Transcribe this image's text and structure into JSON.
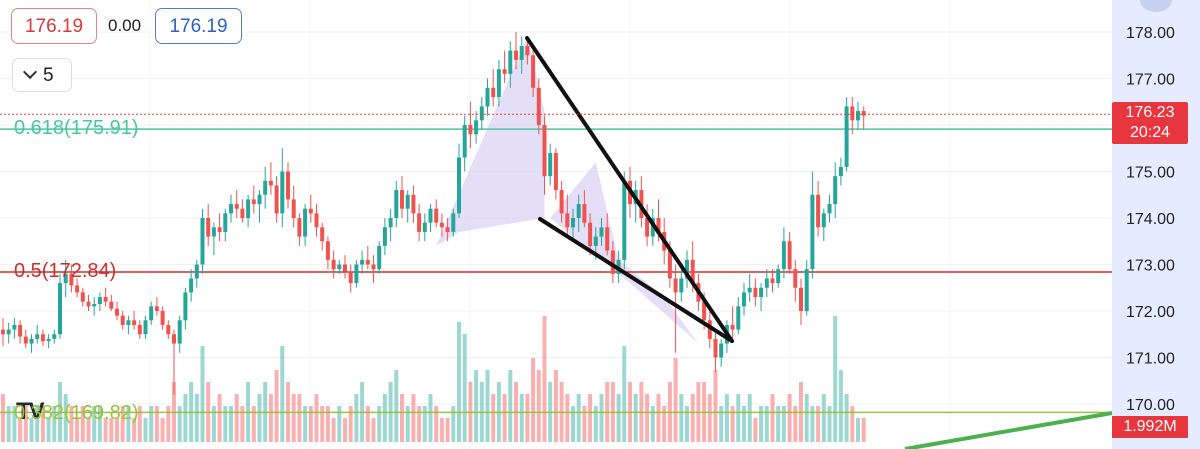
{
  "header": {
    "bid": "176.19",
    "spread": "0.00",
    "ask": "176.19",
    "collapse_count": "5"
  },
  "fib_levels": [
    {
      "label": "0.618(175.91)",
      "price": 175.91,
      "color": "#46c79f"
    },
    {
      "label": "0.5(172.84)",
      "price": 172.84,
      "color": "#c9302c"
    },
    {
      "label": "0.382(169.82)",
      "price": 169.82,
      "color": "#9bc23a"
    }
  ],
  "price_tag": {
    "price": "176.23",
    "countdown": "20:24"
  },
  "volume_tag": "1.992M",
  "logo_text": "TV",
  "colors": {
    "up": "#26a69a",
    "down": "#ef5350",
    "axis_bg": "#e6ecff",
    "pattern_fill": "#d9d2f2"
  },
  "chart_data": {
    "type": "candlestick",
    "yaxis": {
      "ticks": [
        "178.00",
        "177.00",
        "176.00",
        "175.00",
        "174.00",
        "173.00",
        "172.00",
        "171.00",
        "170.00"
      ],
      "range": [
        169.75,
        178.6
      ]
    },
    "last_price": 176.23,
    "candles": [
      [
        171.6,
        171.85,
        171.25,
        171.5
      ],
      [
        171.5,
        171.75,
        171.3,
        171.6
      ],
      [
        171.6,
        171.85,
        171.4,
        171.7
      ],
      [
        171.7,
        171.8,
        171.3,
        171.45
      ],
      [
        171.45,
        171.6,
        171.2,
        171.3
      ],
      [
        171.3,
        171.5,
        171.1,
        171.4
      ],
      [
        171.4,
        171.7,
        171.3,
        171.5
      ],
      [
        171.5,
        171.6,
        171.25,
        171.35
      ],
      [
        171.35,
        171.5,
        171.2,
        171.4
      ],
      [
        171.4,
        171.6,
        171.3,
        171.5
      ],
      [
        171.5,
        172.8,
        171.4,
        172.6
      ],
      [
        172.6,
        173.1,
        172.3,
        172.8
      ],
      [
        172.8,
        173.0,
        172.4,
        172.55
      ],
      [
        172.55,
        172.7,
        172.3,
        172.4
      ],
      [
        172.4,
        172.5,
        172.1,
        172.2
      ],
      [
        172.2,
        172.35,
        172.0,
        172.1
      ],
      [
        172.1,
        172.3,
        171.9,
        172.15
      ],
      [
        172.15,
        172.4,
        172.0,
        172.3
      ],
      [
        172.3,
        172.5,
        172.1,
        172.2
      ],
      [
        172.2,
        172.35,
        172.0,
        172.05
      ],
      [
        172.05,
        172.2,
        171.8,
        171.9
      ],
      [
        171.9,
        172.0,
        171.6,
        171.7
      ],
      [
        171.7,
        171.9,
        171.5,
        171.8
      ],
      [
        171.8,
        172.0,
        171.6,
        171.7
      ],
      [
        171.7,
        171.8,
        171.4,
        171.5
      ],
      [
        171.5,
        171.9,
        171.4,
        171.8
      ],
      [
        171.8,
        172.2,
        171.7,
        172.1
      ],
      [
        172.1,
        172.3,
        171.9,
        172.0
      ],
      [
        172.0,
        172.1,
        171.6,
        171.7
      ],
      [
        171.7,
        171.8,
        171.4,
        171.5
      ],
      [
        171.5,
        171.6,
        170.2,
        171.3
      ],
      [
        171.3,
        171.9,
        171.1,
        171.8
      ],
      [
        171.8,
        172.5,
        171.6,
        172.4
      ],
      [
        172.4,
        172.9,
        172.2,
        172.7
      ],
      [
        172.7,
        173.1,
        172.5,
        173.0
      ],
      [
        173.0,
        174.2,
        172.8,
        174.0
      ],
      [
        174.0,
        174.3,
        173.4,
        173.6
      ],
      [
        173.6,
        173.9,
        173.2,
        173.8
      ],
      [
        173.8,
        174.1,
        173.5,
        173.7
      ],
      [
        173.7,
        174.2,
        173.5,
        174.1
      ],
      [
        174.1,
        174.5,
        173.9,
        174.3
      ],
      [
        174.3,
        174.6,
        174.0,
        174.2
      ],
      [
        174.2,
        174.4,
        173.9,
        174.0
      ],
      [
        174.0,
        174.5,
        173.8,
        174.4
      ],
      [
        174.4,
        174.7,
        174.1,
        174.3
      ],
      [
        174.3,
        174.6,
        173.9,
        174.5
      ],
      [
        174.5,
        175.1,
        174.2,
        174.8
      ],
      [
        174.8,
        175.2,
        174.5,
        174.7
      ],
      [
        174.7,
        174.9,
        173.9,
        174.1
      ],
      [
        174.1,
        175.5,
        173.8,
        175.0
      ],
      [
        175.0,
        175.2,
        174.2,
        174.4
      ],
      [
        174.4,
        174.7,
        173.8,
        174.0
      ],
      [
        174.0,
        174.1,
        173.4,
        173.6
      ],
      [
        173.6,
        174.3,
        173.4,
        174.2
      ],
      [
        174.2,
        174.5,
        173.9,
        174.1
      ],
      [
        174.1,
        174.3,
        173.6,
        173.8
      ],
      [
        173.8,
        173.9,
        173.3,
        173.5
      ],
      [
        173.5,
        173.6,
        172.9,
        173.1
      ],
      [
        173.1,
        173.3,
        172.7,
        172.9
      ],
      [
        172.9,
        173.1,
        172.8,
        173.0
      ],
      [
        173.0,
        173.2,
        172.7,
        172.85
      ],
      [
        172.85,
        173.0,
        172.4,
        172.6
      ],
      [
        172.6,
        173.1,
        172.5,
        173.0
      ],
      [
        173.0,
        173.3,
        172.8,
        173.1
      ],
      [
        173.1,
        173.4,
        172.9,
        173.0
      ],
      [
        173.0,
        173.2,
        172.6,
        172.9
      ],
      [
        172.9,
        173.5,
        172.8,
        173.4
      ],
      [
        173.4,
        174.0,
        173.2,
        173.8
      ],
      [
        173.8,
        174.2,
        173.5,
        174.0
      ],
      [
        174.0,
        174.8,
        173.8,
        174.6
      ],
      [
        174.6,
        174.9,
        174.0,
        174.2
      ],
      [
        174.2,
        174.6,
        173.9,
        174.5
      ],
      [
        174.5,
        174.7,
        173.9,
        174.1
      ],
      [
        174.1,
        174.3,
        173.5,
        173.7
      ],
      [
        173.7,
        174.1,
        173.5,
        173.9
      ],
      [
        173.9,
        174.3,
        173.7,
        174.2
      ],
      [
        174.2,
        174.4,
        173.8,
        173.9
      ],
      [
        173.9,
        174.1,
        173.6,
        173.8
      ],
      [
        173.8,
        174.0,
        173.5,
        173.7
      ],
      [
        173.7,
        174.2,
        173.6,
        174.1
      ],
      [
        174.1,
        175.6,
        174.0,
        175.3
      ],
      [
        175.3,
        176.2,
        175.0,
        176.0
      ],
      [
        176.0,
        176.5,
        175.5,
        175.8
      ],
      [
        175.8,
        176.3,
        175.6,
        176.1
      ],
      [
        176.1,
        176.6,
        175.9,
        176.4
      ],
      [
        176.4,
        177.0,
        176.2,
        176.8
      ],
      [
        176.8,
        177.2,
        176.4,
        176.6
      ],
      [
        176.6,
        177.4,
        176.4,
        177.2
      ],
      [
        177.2,
        177.6,
        176.9,
        177.1
      ],
      [
        177.1,
        177.8,
        176.8,
        177.6
      ],
      [
        177.6,
        178.0,
        177.2,
        177.4
      ],
      [
        177.4,
        177.9,
        177.1,
        177.7
      ],
      [
        177.7,
        177.9,
        177.3,
        177.5
      ],
      [
        177.5,
        177.7,
        176.6,
        176.8
      ],
      [
        176.8,
        177.0,
        175.8,
        176.0
      ],
      [
        176.0,
        176.2,
        174.5,
        174.9
      ],
      [
        174.9,
        175.6,
        174.7,
        175.4
      ],
      [
        175.4,
        175.5,
        174.4,
        174.6
      ],
      [
        174.6,
        174.8,
        173.9,
        174.1
      ],
      [
        174.1,
        174.5,
        173.6,
        173.8
      ],
      [
        173.8,
        174.2,
        173.5,
        174.0
      ],
      [
        174.0,
        174.5,
        173.7,
        174.3
      ],
      [
        174.3,
        174.6,
        173.8,
        173.9
      ],
      [
        173.9,
        174.1,
        173.2,
        173.4
      ],
      [
        173.4,
        173.8,
        173.1,
        173.6
      ],
      [
        173.6,
        174.0,
        173.4,
        173.8
      ],
      [
        173.8,
        174.1,
        173.2,
        173.3
      ],
      [
        173.3,
        173.5,
        172.6,
        172.8
      ],
      [
        172.8,
        173.3,
        172.6,
        173.1
      ],
      [
        173.1,
        175.0,
        172.9,
        174.8
      ],
      [
        174.8,
        175.1,
        174.0,
        174.3
      ],
      [
        174.3,
        174.8,
        173.9,
        174.6
      ],
      [
        174.6,
        174.9,
        173.8,
        174.0
      ],
      [
        174.0,
        174.3,
        173.4,
        173.6
      ],
      [
        173.6,
        174.2,
        173.4,
        174.0
      ],
      [
        174.0,
        174.4,
        173.5,
        173.7
      ],
      [
        173.7,
        174.0,
        173.0,
        173.3
      ],
      [
        173.3,
        173.5,
        172.5,
        172.7
      ],
      [
        172.7,
        173.0,
        171.1,
        172.4
      ],
      [
        172.4,
        172.9,
        172.2,
        172.7
      ],
      [
        172.7,
        173.3,
        172.5,
        173.1
      ],
      [
        173.1,
        173.5,
        172.4,
        172.6
      ],
      [
        172.6,
        172.8,
        172.0,
        172.2
      ],
      [
        172.2,
        172.4,
        171.6,
        171.8
      ],
      [
        171.8,
        172.0,
        171.2,
        171.4
      ],
      [
        171.4,
        171.6,
        170.7,
        171.0
      ],
      [
        171.0,
        171.4,
        170.8,
        171.3
      ],
      [
        171.3,
        171.8,
        171.1,
        171.7
      ],
      [
        171.7,
        172.1,
        171.4,
        171.6
      ],
      [
        171.6,
        172.3,
        171.5,
        172.1
      ],
      [
        172.1,
        172.6,
        171.9,
        172.4
      ],
      [
        172.4,
        172.8,
        172.2,
        172.5
      ],
      [
        172.5,
        172.7,
        172.1,
        172.3
      ],
      [
        172.3,
        172.6,
        172.0,
        172.5
      ],
      [
        172.5,
        172.9,
        172.3,
        172.7
      ],
      [
        172.7,
        172.9,
        172.4,
        172.6
      ],
      [
        172.6,
        173.0,
        172.5,
        172.9
      ],
      [
        172.9,
        173.8,
        172.7,
        173.5
      ],
      [
        173.5,
        173.7,
        172.8,
        172.9
      ],
      [
        172.9,
        173.1,
        172.2,
        172.5
      ],
      [
        172.5,
        172.7,
        171.7,
        172.0
      ],
      [
        172.0,
        173.1,
        171.9,
        172.9
      ],
      [
        172.9,
        175.0,
        172.7,
        174.5
      ],
      [
        174.5,
        174.8,
        173.6,
        173.8
      ],
      [
        173.8,
        174.2,
        173.5,
        174.1
      ],
      [
        174.1,
        174.5,
        173.9,
        174.3
      ],
      [
        174.3,
        175.2,
        174.0,
        174.9
      ],
      [
        174.9,
        175.3,
        174.7,
        175.1
      ],
      [
        175.1,
        176.6,
        175.0,
        176.4
      ],
      [
        176.4,
        176.6,
        175.8,
        176.1
      ],
      [
        176.1,
        176.5,
        175.9,
        176.3
      ],
      [
        176.3,
        176.4,
        175.9,
        176.2
      ]
    ],
    "volume": [
      0.4,
      0.3,
      0.3,
      0.2,
      0.3,
      0.2,
      0.3,
      0.3,
      0.2,
      0.3,
      0.5,
      0.4,
      0.3,
      0.2,
      0.3,
      0.2,
      0.3,
      0.3,
      0.2,
      0.2,
      0.2,
      0.3,
      0.3,
      0.2,
      0.3,
      0.2,
      0.3,
      0.3,
      0.2,
      0.3,
      0.5,
      0.3,
      0.4,
      0.5,
      0.4,
      0.8,
      0.5,
      0.3,
      0.4,
      0.3,
      0.3,
      0.4,
      0.3,
      0.5,
      0.3,
      0.4,
      0.5,
      0.4,
      0.6,
      0.8,
      0.5,
      0.4,
      0.4,
      0.3,
      0.3,
      0.4,
      0.3,
      0.3,
      0.2,
      0.3,
      0.2,
      0.3,
      0.4,
      0.5,
      0.3,
      0.2,
      0.3,
      0.4,
      0.5,
      0.6,
      0.4,
      0.3,
      0.4,
      0.3,
      0.3,
      0.4,
      0.3,
      0.2,
      0.2,
      0.3,
      1.0,
      0.9,
      0.5,
      0.6,
      0.5,
      0.6,
      0.4,
      0.5,
      0.4,
      0.6,
      0.5,
      0.4,
      0.4,
      0.7,
      0.6,
      1.05,
      0.5,
      0.6,
      0.5,
      0.4,
      0.3,
      0.4,
      0.3,
      0.4,
      0.3,
      0.4,
      0.5,
      0.5,
      0.4,
      0.8,
      0.5,
      0.4,
      0.5,
      0.4,
      0.3,
      0.4,
      0.3,
      0.5,
      0.7,
      0.4,
      0.3,
      0.4,
      0.5,
      0.5,
      0.4,
      0.6,
      0.3,
      0.4,
      0.3,
      0.4,
      0.3,
      0.4,
      0.2,
      0.3,
      0.3,
      0.4,
      0.3,
      0.3,
      0.4,
      0.3,
      0.5,
      0.4,
      0.3,
      0.3,
      0.4,
      0.3,
      1.05,
      0.6,
      0.4,
      0.3
    ]
  }
}
